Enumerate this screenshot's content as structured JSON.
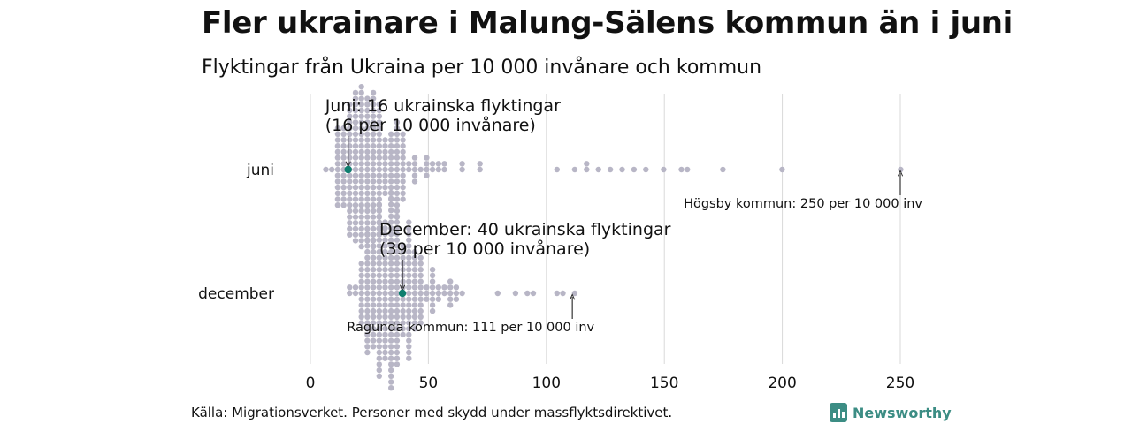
{
  "title": "Fler ukrainare i Malung-Sälens kommun än i juni",
  "subtitle": "Flyktingar från Ukraina per 10 000 invånare och kommun",
  "source": "Källa: Migrationsverket. Personer med skydd under massflyktsdirektivet.",
  "brand": "Newsworthy",
  "colors": {
    "dots": "#b8b6c6",
    "highlight": "#0e7f6f",
    "grid": "#d9d9d9",
    "brand": "#3c8d84"
  },
  "chart_data": {
    "type": "scatter",
    "subtype": "beeswarm",
    "xlim": [
      0,
      250
    ],
    "xticks": [
      0,
      50,
      100,
      150,
      200,
      250
    ],
    "grid": true,
    "categories": [
      "juni",
      "december"
    ],
    "series": [
      {
        "name": "juni",
        "highlight": {
          "value": 16,
          "label_line1": "Juni: 16 ukrainska flyktingar",
          "label_line2": "(16 per 10 000 invånare)"
        },
        "outliers_shown": [
          105,
          112,
          116,
          118,
          123,
          127,
          131,
          137,
          142,
          150,
          156,
          159,
          176,
          200,
          250
        ],
        "max_annotation": {
          "value": 250,
          "label": "Högsby kommun: 250 per 10 000 inv"
        }
      },
      {
        "name": "december",
        "highlight": {
          "value": 39,
          "label_line1": "December: 40 ukrainska flyktingar",
          "label_line2": "(39 per 10 000 invånare)"
        },
        "outliers_shown": [
          80,
          86,
          93,
          94,
          104,
          108,
          111
        ],
        "max_annotation": {
          "value": 111,
          "label": "Ragunda kommun: 111 per 10 000 inv"
        }
      }
    ]
  }
}
